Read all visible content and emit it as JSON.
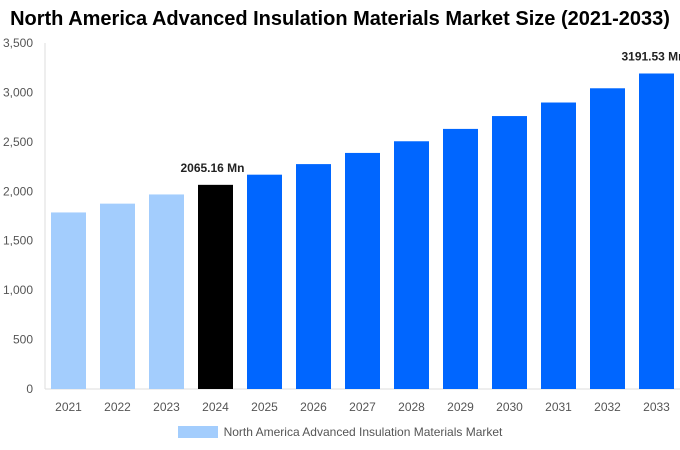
{
  "chart_data": {
    "type": "bar",
    "title": "North America Advanced Insulation Materials Market Size (2021-2033)",
    "categories": [
      "2021",
      "2022",
      "2023",
      "2024",
      "2025",
      "2026",
      "2027",
      "2028",
      "2029",
      "2030",
      "2031",
      "2032",
      "2033"
    ],
    "values": [
      1786,
      1875,
      1968,
      2065.16,
      2168,
      2275,
      2388,
      2506,
      2631,
      2761,
      2898,
      3042,
      3191.53
    ],
    "data_labels": {
      "2024": "2065.16 Mn",
      "2033": "3191.53 Mn"
    },
    "ylim": [
      0,
      3500
    ],
    "yticks": [
      0,
      500,
      1000,
      1500,
      2000,
      2500,
      3000,
      3500
    ],
    "ytick_labels": [
      "0",
      "500",
      "1,000",
      "1,500",
      "2,000",
      "2,500",
      "3,000",
      "3,500"
    ],
    "xlabel": "",
    "ylabel": "",
    "grid": false,
    "legend": {
      "position": "bottom",
      "entries": [
        "North America Advanced Insulation Materials Market"
      ]
    },
    "colors": {
      "historical": "#a3cdfd",
      "base_year": "#000000",
      "forecast": "#0066ff"
    },
    "color_groups": [
      "historical",
      "historical",
      "historical",
      "base_year",
      "forecast",
      "forecast",
      "forecast",
      "forecast",
      "forecast",
      "forecast",
      "forecast",
      "forecast",
      "forecast"
    ]
  }
}
